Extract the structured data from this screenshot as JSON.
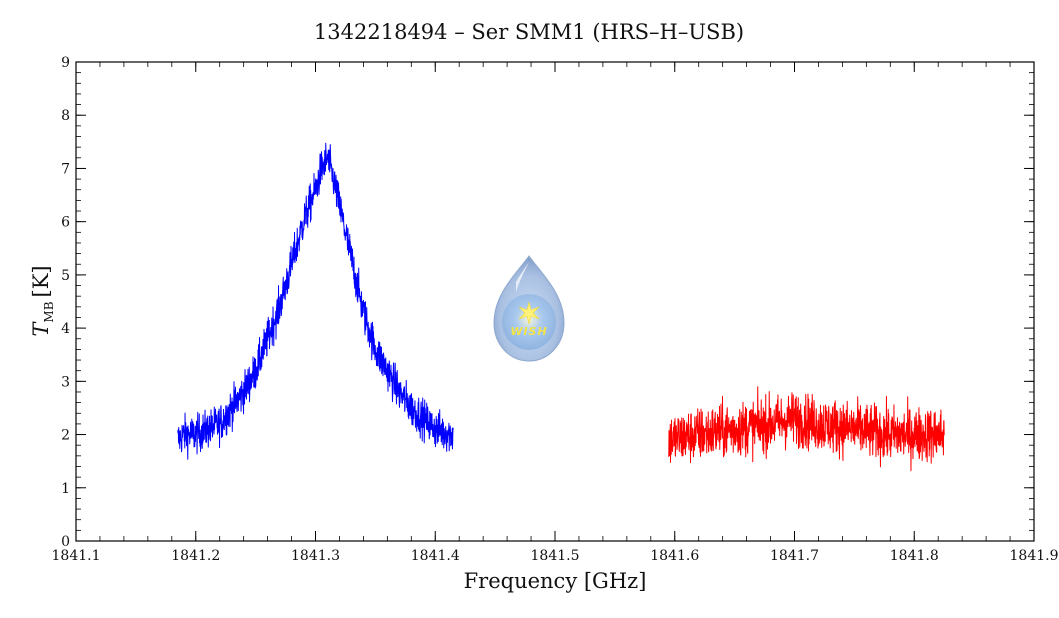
{
  "chart_data": {
    "type": "line",
    "title": "1342218494 – Ser SMM1 (HRS–H–USB)",
    "xlabel": "Frequency [GHz]",
    "ylabel_main": "T",
    "ylabel_sub": "MB",
    "ylabel_units": "[K]",
    "xlim": [
      1841.1,
      1841.9
    ],
    "ylim": [
      0,
      9
    ],
    "x_ticks": [
      "1841.1",
      "1841.2",
      "1841.3",
      "1841.4",
      "1841.5",
      "1841.6",
      "1841.7",
      "1841.8",
      "1841.9"
    ],
    "y_ticks": [
      "0",
      "1",
      "2",
      "3",
      "4",
      "5",
      "6",
      "7",
      "8",
      "9"
    ],
    "grid": false,
    "series": [
      {
        "color": "#0000ff",
        "x": [
          1841.185,
          1841.19,
          1841.2,
          1841.21,
          1841.22,
          1841.23,
          1841.24,
          1841.25,
          1841.26,
          1841.27,
          1841.28,
          1841.29,
          1841.3,
          1841.305,
          1841.31,
          1841.315,
          1841.32,
          1841.33,
          1841.34,
          1841.35,
          1841.36,
          1841.37,
          1841.38,
          1841.39,
          1841.4,
          1841.415
        ],
        "y": [
          1.9,
          2.0,
          2.0,
          2.1,
          2.2,
          2.5,
          2.8,
          3.2,
          3.8,
          4.4,
          5.2,
          6.0,
          6.6,
          7.0,
          7.2,
          6.8,
          6.3,
          5.3,
          4.3,
          3.6,
          3.2,
          2.8,
          2.5,
          2.3,
          2.1,
          2.0
        ],
        "noise_amplitude": 0.35
      },
      {
        "color": "#ff0000",
        "x": [
          1841.595,
          1841.62,
          1841.65,
          1841.68,
          1841.7,
          1841.72,
          1841.75,
          1841.78,
          1841.8,
          1841.825
        ],
        "y": [
          1.9,
          2.0,
          2.1,
          2.2,
          2.3,
          2.2,
          2.1,
          2.0,
          2.0,
          2.0
        ],
        "noise_amplitude": 0.5
      }
    ]
  },
  "logo": {
    "text": "WISH",
    "colors": {
      "drop_light": "#e4ecf6",
      "drop_dark": "#8aa7cf",
      "inner": "#9cc0ea",
      "star": "#ffe84a"
    }
  }
}
